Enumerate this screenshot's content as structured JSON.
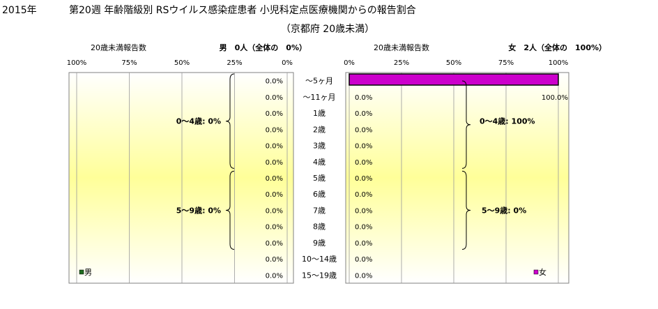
{
  "title": {
    "line1_year": "2015年",
    "line1_main": "第20週 年齢階級別 RSウイルス感染症患者 小児科定点医療機関からの報告割合",
    "line2": "（京都府 20歳未満）"
  },
  "colors": {
    "male_bar": "#1e6b1e",
    "female_bar": "#cc00cc",
    "plot_center": "#ffff99",
    "plot_edge": "#ffffff"
  },
  "chart_data": {
    "type": "bar",
    "orientation": "horizontal-butterfly",
    "categories": [
      "～5ヶ月",
      "～11ヶ月",
      "1歳",
      "2歳",
      "3歳",
      "4歳",
      "5歳",
      "6歳",
      "7歳",
      "8歳",
      "9歳",
      "10～14歳",
      "15～19歳"
    ],
    "left_panel": {
      "header": "20歳未満報告数",
      "summary": "男　0人（全体の　0%）",
      "ticks": [
        "100%",
        "75%",
        "50%",
        "25%",
        "0%"
      ],
      "xlim": [
        0,
        100
      ],
      "reversed": true,
      "series": [
        {
          "name": "男",
          "values": [
            0,
            0,
            0,
            0,
            0,
            0,
            0,
            0,
            0,
            0,
            0,
            0,
            0
          ]
        }
      ],
      "value_labels": [
        "0.0%",
        "0.0%",
        "0.0%",
        "0.0%",
        "0.0%",
        "0.0%",
        "0.0%",
        "0.0%",
        "0.0%",
        "0.0%",
        "0.0%",
        "0.0%",
        "0.0%"
      ],
      "group_labels": [
        "0～4歳: 0%",
        "5～9歳: 0%"
      ],
      "legend": "男"
    },
    "right_panel": {
      "header": "20歳未満報告数",
      "summary": "女　2人（全体の　100%）",
      "ticks": [
        "0%",
        "25%",
        "50%",
        "75%",
        "100%"
      ],
      "xlim": [
        0,
        100
      ],
      "reversed": false,
      "series": [
        {
          "name": "女",
          "values": [
            100,
            0,
            0,
            0,
            0,
            0,
            0,
            0,
            0,
            0,
            0,
            0,
            0
          ]
        }
      ],
      "value_labels": [
        "100.0%",
        "0.0%",
        "0.0%",
        "0.0%",
        "0.0%",
        "0.0%",
        "0.0%",
        "0.0%",
        "0.0%",
        "0.0%",
        "0.0%",
        "0.0%",
        "0.0%"
      ],
      "group_labels": [
        "0～4歳: 100%",
        "5～9歳: 0%"
      ],
      "legend": "女"
    }
  }
}
